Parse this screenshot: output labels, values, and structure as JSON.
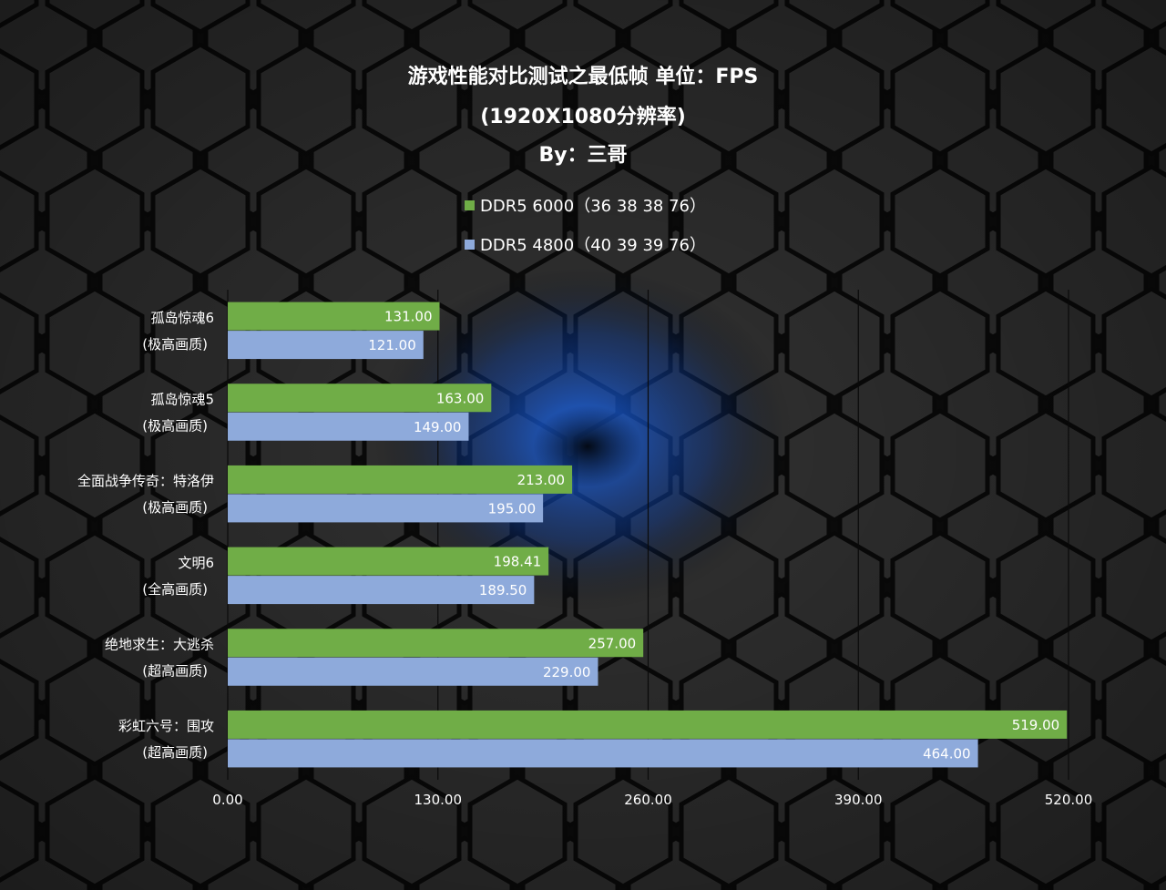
{
  "title": {
    "line1": "游戏性能对比测试之最低帧 单位：FPS",
    "line2": "(1920X1080分辨率)",
    "line3": "By：三哥"
  },
  "colors": {
    "series_green": "#70ad47",
    "series_blue": "#8eaadb",
    "text": "#ffffff",
    "gridline": "#1a1a1a"
  },
  "chart_data": {
    "type": "bar",
    "orientation": "horizontal",
    "categories": [
      [
        "孤岛惊魂6",
        "(极高画质)"
      ],
      [
        "孤岛惊魂5",
        "(极高画质)"
      ],
      [
        "全面战争传奇：特洛伊",
        "(极高画质)"
      ],
      [
        "文明6",
        "(全高画质)"
      ],
      [
        "绝地求生：大逃杀",
        "(超高画质)"
      ],
      [
        "彩虹六号：围攻",
        "(超高画质)"
      ]
    ],
    "series": [
      {
        "name": "DDR5 6000（36 38 38 76）",
        "values": [
          131.0,
          163.0,
          213.0,
          198.41,
          257.0,
          519.0
        ]
      },
      {
        "name": "DDR5 4800（40 39 39 76）",
        "values": [
          121.0,
          149.0,
          195.0,
          189.5,
          229.0,
          464.0
        ]
      }
    ],
    "xlim": [
      0,
      520
    ],
    "xticks": [
      "0.00",
      "130.00",
      "260.00",
      "390.00",
      "520.00"
    ],
    "xtick_values": [
      0,
      130,
      260,
      390,
      520
    ],
    "value_format_decimals": 2,
    "grid": "vertical",
    "legend_position": "top"
  }
}
